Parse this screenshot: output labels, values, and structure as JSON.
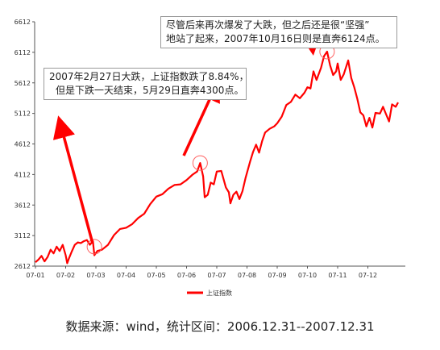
{
  "chart_data": {
    "type": "line",
    "ylim": [
      2612,
      6612
    ],
    "y_ticks": [
      2612,
      3112,
      3612,
      4112,
      4612,
      5112,
      5612,
      6112,
      6612
    ],
    "x_ticks": [
      "07-01",
      "07-02",
      "07-03",
      "07-04",
      "07-05",
      "07-06",
      "07-07",
      "07-08",
      "07-09",
      "07-10",
      "07-11",
      "07-12"
    ],
    "series": [
      {
        "name": "上证指数",
        "color": "#ff0000",
        "points": [
          [
            0.0,
            2675
          ],
          [
            0.1,
            2720
          ],
          [
            0.2,
            2780
          ],
          [
            0.3,
            2690
          ],
          [
            0.4,
            2760
          ],
          [
            0.5,
            2880
          ],
          [
            0.6,
            2820
          ],
          [
            0.7,
            2930
          ],
          [
            0.8,
            2860
          ],
          [
            0.9,
            2960
          ],
          [
            1.0,
            2790
          ],
          [
            1.05,
            2660
          ],
          [
            1.1,
            2730
          ],
          [
            1.2,
            2850
          ],
          [
            1.3,
            2960
          ],
          [
            1.4,
            3000
          ],
          [
            1.5,
            2990
          ],
          [
            1.6,
            3020
          ],
          [
            1.7,
            3040
          ],
          [
            1.8,
            2960
          ],
          [
            1.9,
            3020
          ],
          [
            1.95,
            2790
          ],
          [
            2.05,
            2860
          ],
          [
            2.2,
            2880
          ],
          [
            2.4,
            2960
          ],
          [
            2.6,
            3120
          ],
          [
            2.8,
            3220
          ],
          [
            3.0,
            3240
          ],
          [
            3.2,
            3300
          ],
          [
            3.4,
            3400
          ],
          [
            3.6,
            3470
          ],
          [
            3.8,
            3630
          ],
          [
            4.0,
            3750
          ],
          [
            4.2,
            3790
          ],
          [
            4.4,
            3880
          ],
          [
            4.6,
            3940
          ],
          [
            4.8,
            3950
          ],
          [
            5.0,
            4020
          ],
          [
            5.2,
            4110
          ],
          [
            5.35,
            4160
          ],
          [
            5.45,
            4300
          ],
          [
            5.55,
            4080
          ],
          [
            5.6,
            3740
          ],
          [
            5.7,
            3780
          ],
          [
            5.8,
            3980
          ],
          [
            5.9,
            3950
          ],
          [
            6.0,
            4160
          ],
          [
            6.15,
            4170
          ],
          [
            6.3,
            3900
          ],
          [
            6.4,
            3820
          ],
          [
            6.45,
            3640
          ],
          [
            6.55,
            3780
          ],
          [
            6.65,
            3830
          ],
          [
            6.75,
            3710
          ],
          [
            6.85,
            3840
          ],
          [
            6.95,
            4050
          ],
          [
            7.1,
            4320
          ],
          [
            7.2,
            4480
          ],
          [
            7.3,
            4600
          ],
          [
            7.4,
            4470
          ],
          [
            7.5,
            4660
          ],
          [
            7.6,
            4800
          ],
          [
            7.75,
            4860
          ],
          [
            7.9,
            4900
          ],
          [
            8.0,
            4950
          ],
          [
            8.15,
            5060
          ],
          [
            8.3,
            5250
          ],
          [
            8.45,
            5300
          ],
          [
            8.6,
            5420
          ],
          [
            8.75,
            5360
          ],
          [
            8.9,
            5450
          ],
          [
            9.0,
            5540
          ],
          [
            9.1,
            5520
          ],
          [
            9.2,
            5800
          ],
          [
            9.3,
            5660
          ],
          [
            9.45,
            5860
          ],
          [
            9.55,
            6050
          ],
          [
            9.65,
            6124
          ],
          [
            9.75,
            5900
          ],
          [
            9.85,
            5740
          ],
          [
            9.95,
            5800
          ],
          [
            10.0,
            5930
          ],
          [
            10.1,
            5660
          ],
          [
            10.2,
            5750
          ],
          [
            10.35,
            5980
          ],
          [
            10.45,
            5690
          ],
          [
            10.55,
            5540
          ],
          [
            10.65,
            5350
          ],
          [
            10.75,
            5130
          ],
          [
            10.85,
            5080
          ],
          [
            10.95,
            4900
          ],
          [
            11.05,
            5040
          ],
          [
            11.15,
            4880
          ],
          [
            11.25,
            5120
          ],
          [
            11.4,
            5110
          ],
          [
            11.5,
            5220
          ],
          [
            11.6,
            5100
          ],
          [
            11.7,
            4980
          ],
          [
            11.8,
            5260
          ],
          [
            11.92,
            5220
          ],
          [
            12.0,
            5290
          ]
        ]
      }
    ],
    "annotations": [
      {
        "lines": [
          "2007年2月27日大跌，上证指数跌了8.84%，",
          "但是下跌一天结束，5月29日直奔4300点。"
        ]
      },
      {
        "lines": [
          "尽管后来再次爆发了大跌，但之后还是很“坚强”",
          "地站了起来，2007年10月16日则是直奔6124点。"
        ]
      }
    ],
    "legend_position": "bottom-center",
    "grid": false
  },
  "caption": "数据来源：wind，统计区间：2006.12.31--2007.12.31"
}
